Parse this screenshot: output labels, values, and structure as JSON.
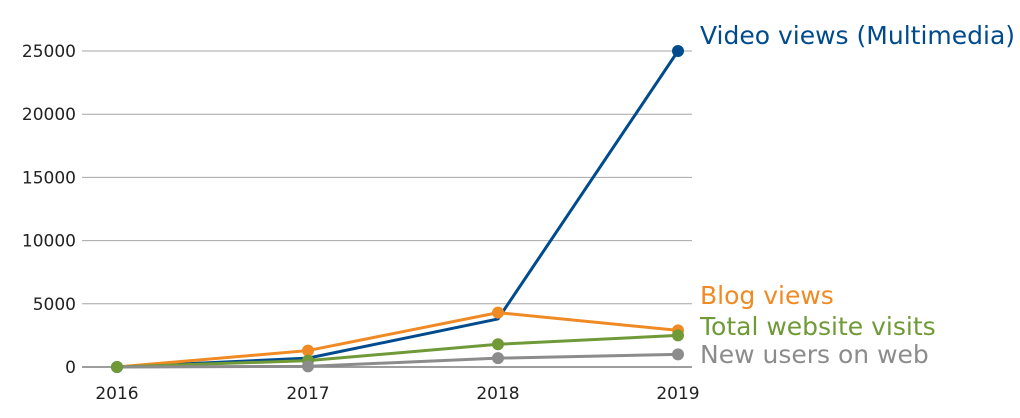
{
  "chart_data": {
    "type": "line",
    "title": "",
    "xlabel": "",
    "ylabel": "",
    "x": [
      "2016",
      "2017",
      "2018",
      "2019"
    ],
    "ylim": [
      0,
      25000
    ],
    "yticks": [
      "0",
      "5000",
      "10000",
      "15000",
      "20000",
      "25000"
    ],
    "grid": true,
    "legend": "right-inline",
    "series": [
      {
        "name": "Video views (Multimedia)",
        "values": [
          0,
          700,
          3800,
          25000
        ],
        "color": "#004b8d",
        "marker_indexes": [
          0,
          3
        ]
      },
      {
        "name": "Blog views",
        "values": [
          0,
          1300,
          4300,
          2900
        ],
        "color": "#f08a24",
        "marker_indexes": [
          1,
          2,
          3
        ]
      },
      {
        "name": "Total website visits",
        "values": [
          0,
          500,
          1800,
          2500
        ],
        "color": "#6f9a37",
        "marker_indexes": [
          0,
          1,
          2,
          3
        ]
      },
      {
        "name": "New users on web",
        "values": [
          0,
          50,
          700,
          1000
        ],
        "color": "#8c8c8c",
        "marker_indexes": [
          1,
          2,
          3
        ]
      }
    ]
  }
}
